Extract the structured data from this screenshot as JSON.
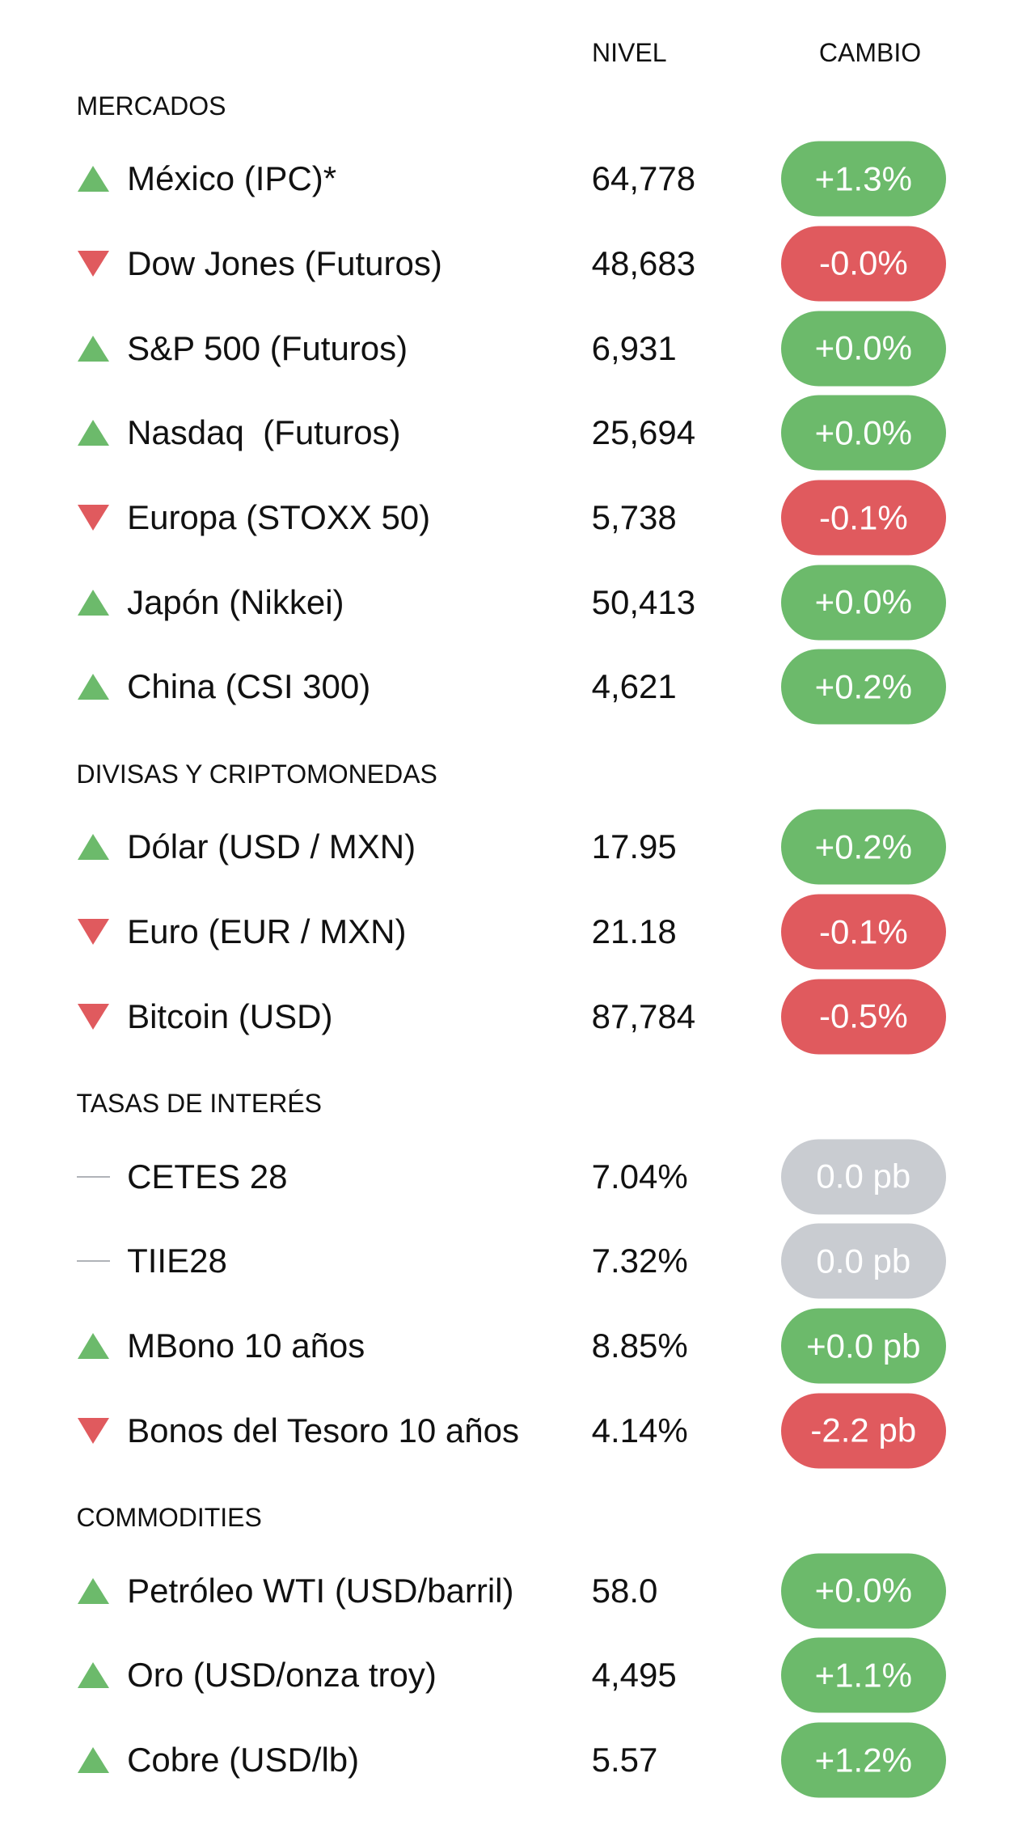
{
  "header": {
    "level": "NIVEL",
    "change": "CAMBIO"
  },
  "sections": [
    {
      "title": "MERCADOS",
      "rows": [
        {
          "name": "México (IPC)*",
          "level": "64,778",
          "change": "+1.3%",
          "direction": "up"
        },
        {
          "name": "Dow Jones (Futuros)",
          "level": "48,683",
          "change": "-0.0%",
          "direction": "down"
        },
        {
          "name": "S&P 500 (Futuros)",
          "level": "6,931",
          "change": "+0.0%",
          "direction": "up"
        },
        {
          "name": "Nasdaq  (Futuros)",
          "level": "25,694",
          "change": "+0.0%",
          "direction": "up"
        },
        {
          "name": "Europa (STOXX 50)",
          "level": "5,738",
          "change": "-0.1%",
          "direction": "down"
        },
        {
          "name": "Japón (Nikkei)",
          "level": "50,413",
          "change": "+0.0%",
          "direction": "up"
        },
        {
          "name": "China (CSI 300)",
          "level": "4,621",
          "change": "+0.2%",
          "direction": "up"
        }
      ]
    },
    {
      "title": "DIVISAS Y CRIPTOMONEDAS",
      "rows": [
        {
          "name": "Dólar (USD / MXN)",
          "level": "17.95",
          "change": "+0.2%",
          "direction": "up"
        },
        {
          "name": "Euro (EUR / MXN)",
          "level": "21.18",
          "change": "-0.1%",
          "direction": "down"
        },
        {
          "name": "Bitcoin (USD)",
          "level": "87,784",
          "change": "-0.5%",
          "direction": "down"
        }
      ]
    },
    {
      "title": "TASAS DE INTERÉS",
      "rows": [
        {
          "name": "CETES 28",
          "level": "7.04%",
          "change": "0.0 pb",
          "direction": "flat"
        },
        {
          "name": "TIIE28",
          "level": "7.32%",
          "change": "0.0 pb",
          "direction": "flat"
        },
        {
          "name": "MBono 10 años",
          "level": "8.85%",
          "change": "+0.0 pb",
          "direction": "up"
        },
        {
          "name": "Bonos del Tesoro 10 años",
          "level": "4.14%",
          "change": "-2.2 pb",
          "direction": "down"
        }
      ]
    },
    {
      "title": "COMMODITIES",
      "rows": [
        {
          "name": "Petróleo WTI (USD/barril)",
          "level": "58.0",
          "change": "+0.0%",
          "direction": "up"
        },
        {
          "name": "Oro (USD/onza troy)",
          "level": "4,495",
          "change": "+1.1%",
          "direction": "up"
        },
        {
          "name": "Cobre (USD/lb)",
          "level": "5.57",
          "change": "+1.2%",
          "direction": "up"
        }
      ]
    }
  ]
}
